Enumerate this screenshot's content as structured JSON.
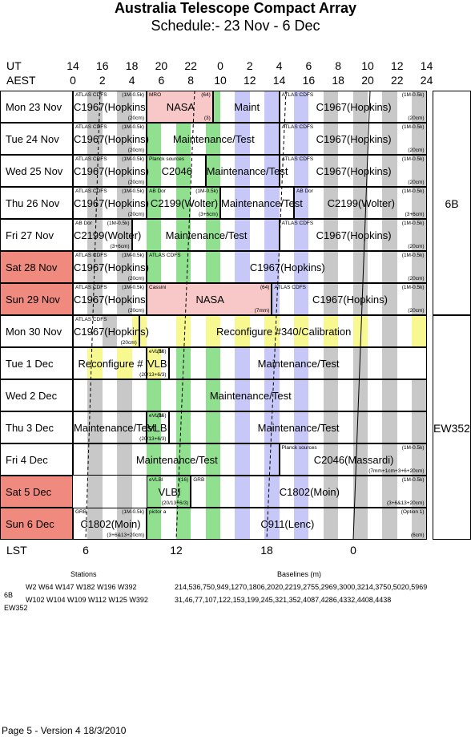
{
  "title": "Australia Telescope Compact Array",
  "subtitle": "Schedule:- 23 Nov - 6  Dec",
  "header": {
    "ut_label": "UT",
    "aest_label": "AEST",
    "ut_ticks": [
      "14",
      "16",
      "18",
      "20",
      "22",
      "0",
      "2",
      "4",
      "6",
      "8",
      "10",
      "12",
      "14"
    ],
    "aest_ticks": [
      "0",
      "2",
      "4",
      "6",
      "8",
      "10",
      "12",
      "14",
      "16",
      "18",
      "20",
      "22",
      "24"
    ],
    "lst_label": "LST",
    "lst_ticks": [
      "6",
      "12",
      "18",
      "0"
    ]
  },
  "rows": [
    {
      "date": "Mon  23 Nov",
      "weekend": false,
      "blocks": [
        {
          "label": "C1967(Hopkins)",
          "tl": "ATLAS CDFS",
          "tr": "(1M-0.5k)",
          "br": "(20cm)"
        },
        {
          "label": "NASA",
          "tl": "MRO",
          "tr": "(64)",
          "br": "(3)"
        },
        {
          "label": "Maint"
        },
        {
          "label": "C1967(Hopkins)",
          "tl": "ATLAS CDFS",
          "tr": "(1M-0.5k)",
          "br": "(20cm)"
        }
      ]
    },
    {
      "date": "Tue  24 Nov",
      "weekend": false,
      "blocks": [
        {
          "label": "C1967(Hopkins)",
          "tl": "ATLAS CDFS",
          "tr": "(1M-0.5k)",
          "br": "(20cm)"
        },
        {
          "label": "Maintenance/Test"
        },
        {
          "label": "C1967(Hopkins)",
          "tl": "ATLAS CDFS",
          "tr": "(1M-0.5k)",
          "br": "(20cm)"
        }
      ]
    },
    {
      "date": "Wed  25 Nov",
      "weekend": false,
      "blocks": [
        {
          "label": "C1967(Hopkins)",
          "tl": "ATLAS CDFS",
          "tr": "(1M-0.5k)",
          "br": "(20cm)"
        },
        {
          "label": "C2046",
          "tl": "Planck sources"
        },
        {
          "label": "Maintenance/Test"
        },
        {
          "label": "C1967(Hopkins)",
          "tl": "ATLAS CDFS",
          "tr": "(1M-0.5k)",
          "br": "(20cm)"
        }
      ]
    },
    {
      "date": "Thu  26 Nov",
      "weekend": false,
      "blocks": [
        {
          "label": "C1967(Hopkins)",
          "tl": "ATLAS CDFS",
          "tr": "(1M-0.5k)",
          "br": "(20cm)"
        },
        {
          "label": "C2199(Wolter)",
          "tl": "AB Dor",
          "tr": "(1M-0.5k)",
          "br": "(3+6cm)"
        },
        {
          "label": "Maintenance/Test"
        },
        {
          "label": "C2199(Wolter)",
          "tl": "AB Dor",
          "tr": "(1M-0.5k)",
          "br": "(3+6cm)"
        }
      ]
    },
    {
      "date": "Fri    27 Nov",
      "weekend": false,
      "blocks": [
        {
          "label": "C2199(Wolter)",
          "tl": "AB Dor",
          "tr": "(1M-0.5k)",
          "br": "(3+6cm)"
        },
        {
          "label": "Maintenance/Test"
        },
        {
          "label": "C1967(Hopkins)",
          "tl": "ATLAS CDFS",
          "tr": "(1M-0.5k)",
          "br": "(20cm)"
        }
      ]
    },
    {
      "date": "Sat  28 Nov",
      "weekend": true,
      "blocks": [
        {
          "label": "C1967(Hopkins)",
          "tl": "ATLAS CDFS",
          "tr": "(1M-0.5k)",
          "br": "(20cm)"
        },
        {
          "label": "C1967(Hopkins)",
          "tl": "ATLAS CDFS",
          "tr": "(1M-0.5k)",
          "br": "(20cm)"
        }
      ]
    },
    {
      "date": "Sun  29 Nov",
      "weekend": true,
      "blocks": [
        {
          "label": "C1967(Hopkins)",
          "tl": "ATLAS CDFS",
          "tr": "(1M-0.5k)",
          "br": "(20cm)"
        },
        {
          "label": "NASA",
          "tl": "Cassini",
          "tr": "(64)",
          "br": "(7mm)"
        },
        {
          "label": "C1967(Hopkins)",
          "tl": "ATLAS CDFS",
          "tr": "(1M-0.5k)",
          "br": "(20cm)"
        }
      ]
    },
    {
      "date": "Mon  30 Nov",
      "weekend": false,
      "blocks": [
        {
          "label": "C1967(Hopkins)",
          "tl": "ATLAS CDFS",
          "br": "(20cm)"
        },
        {
          "label": "Reconfigure #340/Calibration"
        }
      ]
    },
    {
      "date": "Tue    1  Dec",
      "weekend": false,
      "blocks": [
        {
          "label": "Reconfigure #"
        },
        {
          "label": "VLBI",
          "tl": "eVLBI",
          "tr": "(16)",
          "br": "(20/13+6/3)"
        },
        {
          "label": "Maintenance/Test"
        }
      ]
    },
    {
      "date": "Wed   2  Dec",
      "weekend": false,
      "blocks": [
        {
          "label": "Maintenance/Test"
        }
      ]
    },
    {
      "date": "Thu    3  Dec",
      "weekend": false,
      "blocks": [
        {
          "label": "Maintenance/Test"
        },
        {
          "label": "VLBI",
          "tl": "eVLBI",
          "tr": "(16)",
          "br": "(20/13+6/3)"
        },
        {
          "label": "Maintenance/Test"
        }
      ]
    },
    {
      "date": "Fri     4  Dec",
      "weekend": false,
      "blocks": [
        {
          "label": "Maintenance/Test"
        },
        {
          "label": "C2046(Massardi)",
          "tl": "Planck sources",
          "tr": "(1M-0.5k)",
          "br": "(7mm+1cm+3+6+20cm)"
        }
      ]
    },
    {
      "date": "Sat    5  Dec",
      "weekend": true,
      "blocks": [
        {
          "label": "VLBI",
          "tl": "eVLBI",
          "tr": "(16)",
          "br": "(20/13+6/3)"
        },
        {
          "label": "C1802(Moin)",
          "tl": "GRB",
          "tr": "(1M-0.5k)",
          "br": "(3+6&13+20cm)"
        }
      ]
    },
    {
      "date": "Sun    6  Dec",
      "weekend": true,
      "blocks": [
        {
          "label": "C1802(Moin)",
          "tl": "GRB",
          "tr": "(1M-0.5k)",
          "br": "(3+6&13+20cm)"
        },
        {
          "label": "C911(Lenc)",
          "tl": "pictor a",
          "tr": "(Option 1)",
          "br": "(6cm)"
        }
      ]
    }
  ],
  "configs": [
    "6B",
    "EW352"
  ],
  "arrays": {
    "stations_heading": "Stations",
    "baselines_heading": "Baselines (m)",
    "lines": [
      {
        "name": "6B",
        "stations": "W2 W64 W147 W182 W196 W392",
        "baselines": "214,536,750,949,1270,1806,2020,2219,2755,2969,3000,3214,3750,5020,5969"
      },
      {
        "name": "EW352",
        "stations": "W102 W104 W109 W112 W125 W392",
        "baselines": "31,46,77,107,122,153,199,245,321,352,4087,4286,4332,4408,4438"
      }
    ]
  },
  "footer": "Page 5 - Version 4  18/3/2010",
  "colors": {
    "weekend": "#f08a7e",
    "grey": "#c8c8c8",
    "lavender": "#c8c8f8",
    "green": "#90e090",
    "yellow": "#f8f890",
    "pink": "#f8c8c8"
  }
}
